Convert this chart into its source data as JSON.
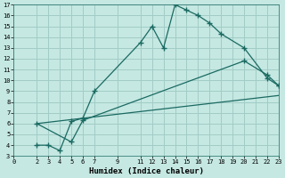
{
  "xlabel": "Humidex (Indice chaleur)",
  "bg_color": "#c5e8e2",
  "grid_color": "#a2ccc6",
  "line_color": "#1a6a62",
  "xlim": [
    0,
    23
  ],
  "ylim": [
    3,
    17
  ],
  "xticks": [
    0,
    2,
    3,
    4,
    5,
    6,
    7,
    9,
    11,
    12,
    13,
    14,
    15,
    16,
    17,
    18,
    19,
    20,
    21,
    22,
    23
  ],
  "yticks": [
    3,
    4,
    5,
    6,
    7,
    8,
    9,
    10,
    11,
    12,
    13,
    14,
    15,
    16,
    17
  ],
  "line1_x": [
    2,
    3,
    4,
    5,
    6,
    7,
    11,
    12,
    13,
    14,
    15,
    16,
    17,
    18,
    20,
    22,
    23
  ],
  "line1_y": [
    4.0,
    4.0,
    3.5,
    6.2,
    6.5,
    9.0,
    13.5,
    15.0,
    13.0,
    17.0,
    16.5,
    16.0,
    15.3,
    14.3,
    13.0,
    10.2,
    9.5
  ],
  "line2_x": [
    2,
    5,
    6,
    20,
    22,
    23
  ],
  "line2_y": [
    6.0,
    4.3,
    6.3,
    11.8,
    10.5,
    9.5
  ],
  "line3_x": [
    2,
    23
  ],
  "line3_y": [
    6.0,
    8.6
  ]
}
